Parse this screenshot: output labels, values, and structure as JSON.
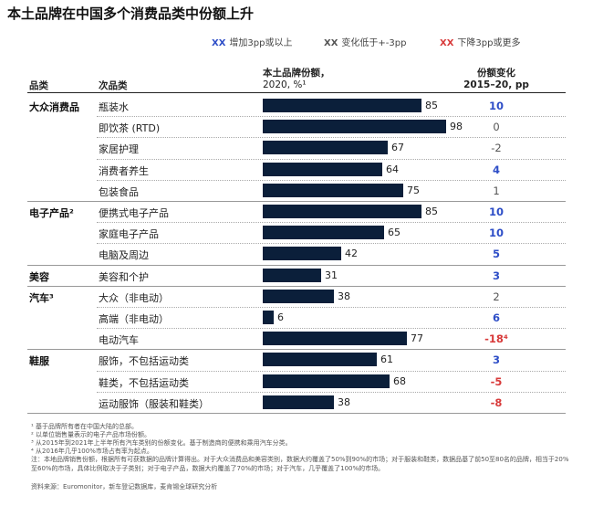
{
  "title": "本土品牌在中国多个消费品类中份额上升",
  "legend": [
    {
      "swatch": "XX",
      "color": "#2e4ec7",
      "label": "增加3pp或以上"
    },
    {
      "swatch": "XX",
      "color": "#555555",
      "label": "变化低于+-3pp"
    },
    {
      "swatch": "XX",
      "color": "#d83a3a",
      "label": "下降3pp或更多"
    }
  ],
  "headers": {
    "cat": "品类",
    "sub": "次品类",
    "share_line1": "本土品牌份额，",
    "share_line2": "2020, %¹",
    "change_line1": "份额变化",
    "change_line2": "2015–20, pp"
  },
  "chart_data": {
    "type": "bar",
    "xlim": [
      0,
      100
    ],
    "rows": [
      {
        "category": "大众消费品",
        "sub": "瓶装水",
        "value": 85,
        "change": "10",
        "change_color": "#2e4ec7"
      },
      {
        "category": "",
        "sub": "即饮茶 (RTD)",
        "value": 98,
        "change": "0",
        "change_color": "#555555"
      },
      {
        "category": "",
        "sub": "家居护理",
        "value": 67,
        "change": "-2",
        "change_color": "#555555"
      },
      {
        "category": "",
        "sub": "消费者养生",
        "value": 64,
        "change": "4",
        "change_color": "#2e4ec7"
      },
      {
        "category": "",
        "sub": "包装食品",
        "value": 75,
        "change": "1",
        "change_color": "#555555"
      },
      {
        "category": "电子产品²",
        "sub": "便携式电子产品",
        "value": 85,
        "change": "10",
        "change_color": "#2e4ec7"
      },
      {
        "category": "",
        "sub": "家庭电子产品",
        "value": 65,
        "change": "10",
        "change_color": "#2e4ec7"
      },
      {
        "category": "",
        "sub": "电脑及周边",
        "value": 42,
        "change": "5",
        "change_color": "#2e4ec7"
      },
      {
        "category": "美容",
        "sub": "美容和个护",
        "value": 31,
        "change": "3",
        "change_color": "#2e4ec7"
      },
      {
        "category": "汽车³",
        "sub": "大众（非电动）",
        "value": 38,
        "change": "2",
        "change_color": "#555555"
      },
      {
        "category": "",
        "sub": "高端（非电动）",
        "value": 6,
        "change": "6",
        "change_color": "#2e4ec7"
      },
      {
        "category": "",
        "sub": "电动汽车",
        "value": 77,
        "change": "-18⁴",
        "change_color": "#d83a3a"
      },
      {
        "category": "鞋服",
        "sub": "服饰，不包括运动类",
        "value": 61,
        "change": "3",
        "change_color": "#2e4ec7"
      },
      {
        "category": "",
        "sub": "鞋类，不包括运动类",
        "value": 68,
        "change": "-5",
        "change_color": "#d83a3a"
      },
      {
        "category": "",
        "sub": "运动服饰（服装和鞋类）",
        "value": 38,
        "change": "-8",
        "change_color": "#d83a3a"
      }
    ]
  },
  "notes": [
    "¹ 基于品牌所有者在中国大陆的总部。",
    "² 以单位销售量表示的电子产品市场份额。",
    "³ 从2015年到2021年上半年所有汽车类别的份额变化。基于制造商的便携和乘用汽车分类。",
    "⁴ 从2016年几乎100%市场占有率为起点。",
    "注：本地品牌销售份额，根据所有可获数据的品牌计算得出。对于大众消费品和美容类别，数据大约覆盖了50%到90%的市场；对于服装和鞋类，数据品基了前50至80名的品牌，相当于20%至60%的市场，具体比例取决于子类别；对于电子产品，数据大约覆盖了70%的市场；对于汽车，几乎覆盖了100%的市场。",
    "资料来源：Euromonitor，新车登记数据库，麦肯锡全球研究分析"
  ]
}
